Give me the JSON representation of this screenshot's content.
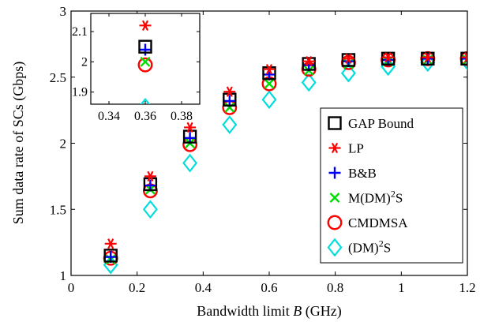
{
  "chart_data": {
    "type": "scatter",
    "xlabel_prefix": "Bandwidth limit ",
    "xlabel_var": "B",
    "xlabel_suffix": " (GHz)",
    "ylabel": "Sum data rate of SCs (Gbps)",
    "xlim": [
      0,
      1.2
    ],
    "ylim": [
      1,
      3
    ],
    "xticks": [
      0,
      0.2,
      0.4,
      0.6,
      0.8,
      1,
      1.2
    ],
    "xtick_labels": [
      "0",
      "0.2",
      "0.4",
      "0.6",
      "0.8",
      "1",
      "1.2"
    ],
    "yticks": [
      1,
      1.5,
      2,
      2.5,
      3
    ],
    "ytick_labels": [
      "1",
      "1.5",
      "2",
      "2.5",
      "3"
    ],
    "grid": false,
    "legend_position": "lower-right",
    "x": [
      0.12,
      0.24,
      0.36,
      0.48,
      0.6,
      0.72,
      0.84,
      0.96,
      1.08,
      1.2
    ],
    "series": [
      {
        "name": "GAP Bound",
        "marker": "square",
        "color": "#000000",
        "values": [
          1.15,
          1.69,
          2.05,
          2.33,
          2.53,
          2.6,
          2.63,
          2.64,
          2.64,
          2.64
        ]
      },
      {
        "name": "LP",
        "marker": "asterisk",
        "color": "#ff0000",
        "values": [
          1.24,
          1.75,
          2.12,
          2.39,
          2.56,
          2.62,
          2.64,
          2.65,
          2.65,
          2.65
        ]
      },
      {
        "name": "B&B",
        "marker": "plus",
        "color": "#0000ff",
        "values": [
          1.14,
          1.68,
          2.04,
          2.32,
          2.52,
          2.59,
          2.62,
          2.63,
          2.64,
          2.64
        ]
      },
      {
        "name": "M(DM)",
        "name_sup": "2",
        "name_end": "S",
        "marker": "cross",
        "color": "#00dd00",
        "values": [
          1.12,
          1.65,
          2.0,
          2.27,
          2.45,
          2.55,
          2.6,
          2.62,
          2.63,
          2.63
        ]
      },
      {
        "name": "CMDMSA",
        "marker": "circle",
        "color": "#ff0000",
        "values": [
          1.13,
          1.64,
          1.99,
          2.27,
          2.45,
          2.56,
          2.61,
          2.63,
          2.64,
          2.64
        ]
      },
      {
        "name": "(DM)",
        "name_sup": "2",
        "name_end": "S",
        "marker": "diamond",
        "color": "#00dddd",
        "values": [
          1.08,
          1.5,
          1.85,
          2.14,
          2.33,
          2.46,
          2.53,
          2.58,
          2.61,
          2.62
        ]
      }
    ],
    "inset": {
      "xlim": [
        0.33,
        0.39
      ],
      "ylim": [
        1.86,
        2.16
      ],
      "xticks": [
        0.34,
        0.36,
        0.38
      ],
      "xtick_labels": [
        "0.34",
        "0.36",
        "0.38"
      ],
      "yticks": [
        1.9,
        2.0,
        2.1
      ],
      "ytick_labels": [
        "1.9",
        "2",
        "2.1"
      ],
      "x": 0.36,
      "values": [
        2.05,
        2.12,
        2.04,
        2.0,
        1.99,
        1.85
      ]
    }
  }
}
